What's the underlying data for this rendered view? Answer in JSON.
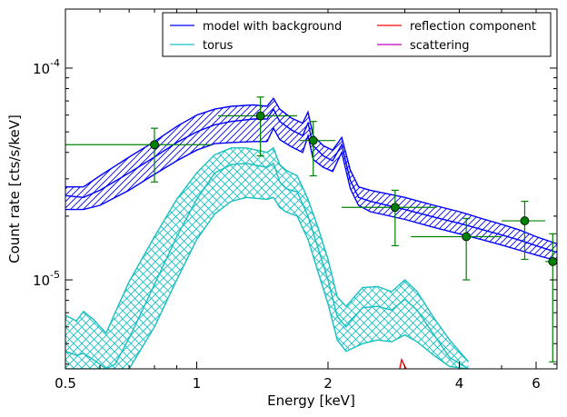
{
  "chart_data": {
    "type": "line",
    "xlabel": "Energy [keV]",
    "ylabel": "Count rate [cts/s/keV]",
    "x_scale": "log",
    "y_scale": "log",
    "xlim": [
      0.5,
      6.7
    ],
    "ylim": [
      3.8e-06,
      0.00019
    ],
    "x_ticks": [
      {
        "value": 0.5,
        "label": "0.5"
      },
      {
        "value": 1,
        "label": "1"
      },
      {
        "value": 2,
        "label": "2"
      },
      {
        "value": 4,
        "label": "4"
      },
      {
        "value": 6,
        "label": "6"
      }
    ],
    "y_ticks": [
      {
        "value": 1e-05,
        "label": "10",
        "exp": "-5"
      },
      {
        "value": 0.0001,
        "label": "10",
        "exp": "-4"
      }
    ],
    "legend": {
      "position": "top-right",
      "columns": 2,
      "entries": [
        {
          "label": "model with background",
          "color": "#0000ff"
        },
        {
          "label": "reflection component",
          "color": "#ff0000"
        },
        {
          "label": "torus",
          "color": "#17bfbf"
        },
        {
          "label": "scattering",
          "color": "#bf00bf"
        }
      ]
    },
    "series": [
      {
        "name": "model with background",
        "color": "#0000ff",
        "type": "band",
        "x": [
          0.5,
          0.55,
          0.6,
          0.7,
          0.8,
          0.9,
          1.0,
          1.1,
          1.2,
          1.35,
          1.45,
          1.5,
          1.55,
          1.65,
          1.75,
          1.8,
          1.85,
          1.95,
          2.05,
          2.15,
          2.25,
          2.35,
          2.5,
          3.0,
          3.5,
          4.0,
          4.5,
          5.0,
          5.5,
          6.0,
          6.7
        ],
        "upper": [
          2.75e-05,
          2.75e-05,
          3.1e-05,
          3.8e-05,
          4.5e-05,
          5.3e-05,
          6e-05,
          6.4e-05,
          6.6e-05,
          6.7e-05,
          6.6e-05,
          7.2e-05,
          6.4e-05,
          5.8e-05,
          5.5e-05,
          6.2e-05,
          4.8e-05,
          4.3e-05,
          4.1e-05,
          4.7e-05,
          3.3e-05,
          2.75e-05,
          2.65e-05,
          2.45e-05,
          2.25e-05,
          2.1e-05,
          1.95e-05,
          1.83e-05,
          1.72e-05,
          1.6e-05,
          1.48e-05
        ],
        "mid": [
          2.5e-05,
          2.45e-05,
          2.65e-05,
          3.2e-05,
          3.8e-05,
          4.45e-05,
          5e-05,
          5.4e-05,
          5.6e-05,
          5.75e-05,
          5.75e-05,
          6.4e-05,
          5.6e-05,
          5.1e-05,
          4.8e-05,
          5.5e-05,
          4.3e-05,
          3.85e-05,
          3.65e-05,
          4.35e-05,
          2.95e-05,
          2.45e-05,
          2.35e-05,
          2.15e-05,
          1.98e-05,
          1.85e-05,
          1.73e-05,
          1.63e-05,
          1.54e-05,
          1.45e-05,
          1.35e-05
        ],
        "lower": [
          2.15e-05,
          2.15e-05,
          2.25e-05,
          2.65e-05,
          3.15e-05,
          3.65e-05,
          4.1e-05,
          4.4e-05,
          4.45e-05,
          4.5e-05,
          4.5e-05,
          5.2e-05,
          4.6e-05,
          4.25e-05,
          4e-05,
          4.8e-05,
          3.7e-05,
          3.4e-05,
          3.25e-05,
          4e-05,
          2.7e-05,
          2.25e-05,
          2.1e-05,
          1.93e-05,
          1.77e-05,
          1.65e-05,
          1.55e-05,
          1.46e-05,
          1.38e-05,
          1.31e-05,
          1.23e-05
        ]
      },
      {
        "name": "torus",
        "color": "#17bfbf",
        "type": "band",
        "x": [
          0.5,
          0.53,
          0.55,
          0.58,
          0.62,
          0.65,
          0.7,
          0.8,
          0.9,
          1.0,
          1.1,
          1.2,
          1.3,
          1.45,
          1.5,
          1.55,
          1.6,
          1.7,
          1.8,
          1.9,
          2.0,
          2.1,
          2.2,
          2.4,
          2.6,
          2.8,
          3.0,
          3.2,
          3.5,
          3.8,
          4.2
        ],
        "upper": [
          6.8e-06,
          6.4e-06,
          7.1e-06,
          6.5e-06,
          5.6e-06,
          7e-06,
          9.8e-06,
          1.6e-05,
          2.4e-05,
          3.2e-05,
          3.9e-05,
          4.2e-05,
          4.2e-05,
          4e-05,
          4.2e-05,
          3.5e-05,
          3.3e-05,
          3.1e-05,
          2.4e-05,
          1.75e-05,
          1.25e-05,
          8.3e-06,
          7.5e-06,
          9.2e-06,
          9.3e-06,
          8.8e-06,
          1e-05,
          8.8e-06,
          6.6e-06,
          5.2e-06,
          4.1e-06
        ],
        "mid": [
          4.6e-06,
          4.4e-06,
          4.5e-06,
          4.2e-06,
          3.8e-06,
          4e-06,
          5.3e-06,
          9.5e-06,
          1.6e-05,
          2.4e-05,
          3.2e-05,
          3.5e-05,
          3.55e-05,
          3.4e-05,
          3.55e-05,
          2.9e-05,
          2.7e-05,
          2.6e-05,
          2e-05,
          1.4e-05,
          1e-05,
          6.7e-06,
          6e-06,
          7.4e-06,
          7.5e-06,
          7.2e-06,
          8.1e-06,
          7.2e-06,
          5.5e-06,
          4.3e-06,
          3.8e-06
        ],
        "lower": [
          3.8e-06,
          3.8e-06,
          3.8e-06,
          3.8e-06,
          3.8e-06,
          3.8e-06,
          3.8e-06,
          6e-06,
          1e-05,
          1.55e-05,
          2.05e-05,
          2.35e-05,
          2.45e-05,
          2.4e-05,
          2.45e-05,
          2.2e-05,
          2.1e-05,
          2e-05,
          1.55e-05,
          1.08e-05,
          7.7e-06,
          5.2e-06,
          4.6e-06,
          5e-06,
          5.2e-06,
          5.1e-06,
          5.5e-06,
          5.1e-06,
          4.4e-06,
          3.9e-06,
          3.8e-06
        ]
      },
      {
        "name": "reflection component",
        "color": "#ff0000",
        "type": "line",
        "x": [
          2.92,
          2.95,
          3.0,
          3.02
        ],
        "y": [
          3.8e-06,
          4.2e-06,
          3.9e-06,
          3.8e-06
        ]
      },
      {
        "name": "scattering",
        "color": "#bf00bf",
        "type": "line",
        "x": [],
        "y": []
      }
    ],
    "data_points": {
      "color": "#008000",
      "points": [
        {
          "x": 0.8,
          "y": 4.35e-05,
          "xlo": 0.5,
          "xhi": 1.08,
          "ylo": 2.9e-05,
          "yhi": 5.2e-05
        },
        {
          "x": 1.4,
          "y": 5.95e-05,
          "xlo": 1.12,
          "xhi": 1.7,
          "ylo": 3.85e-05,
          "yhi": 7.3e-05
        },
        {
          "x": 1.85,
          "y": 4.55e-05,
          "xlo": 1.72,
          "xhi": 2.08,
          "ylo": 3.1e-05,
          "yhi": 5.6e-05
        },
        {
          "x": 2.85,
          "y": 2.2e-05,
          "xlo": 2.15,
          "xhi": 3.55,
          "ylo": 1.45e-05,
          "yhi": 2.65e-05
        },
        {
          "x": 4.15,
          "y": 1.6e-05,
          "xlo": 3.1,
          "xhi": 5.0,
          "ylo": 1e-05,
          "yhi": 1.95e-05
        },
        {
          "x": 5.65,
          "y": 1.9e-05,
          "xlo": 5.0,
          "xhi": 6.3,
          "ylo": 1.25e-05,
          "yhi": 2.35e-05
        },
        {
          "x": 6.55,
          "y": 1.22e-05,
          "xlo": 6.3,
          "xhi": 6.7,
          "ylo": 4.1e-06,
          "yhi": 1.65e-05
        }
      ]
    }
  }
}
